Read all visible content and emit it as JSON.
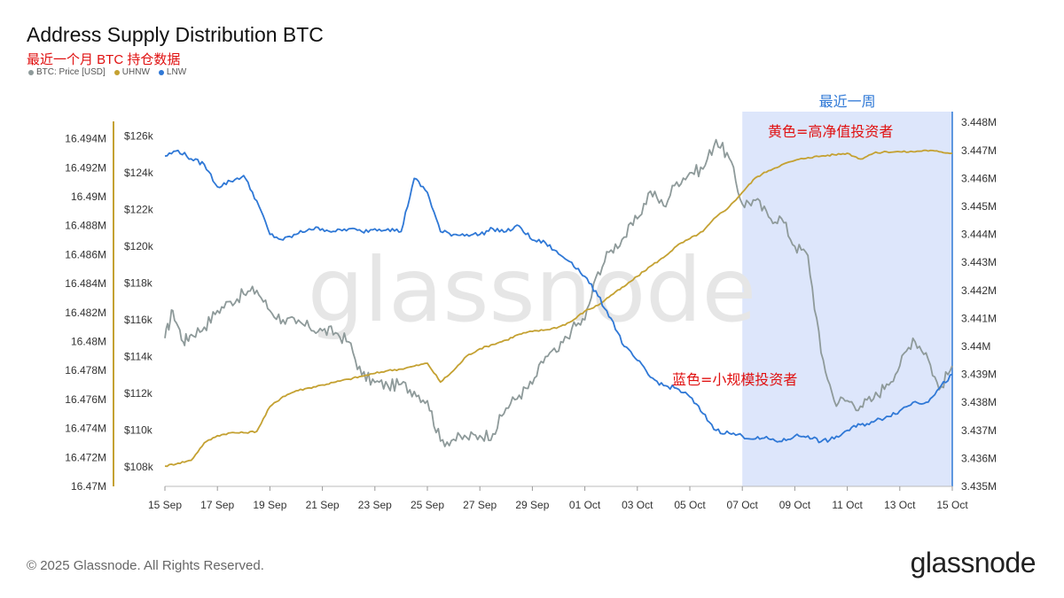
{
  "header": {
    "title": "Address Supply Distribution BTC",
    "subtitle": "最近一个月 BTC 持仓数据"
  },
  "footer": {
    "copyright": "© 2025 Glassnode. All Rights Reserved.",
    "logo": "glassnode",
    "watermark": "glassnode"
  },
  "colors": {
    "price": "#8e9a9a",
    "uhnw": "#c4a132",
    "lnw": "#2f78d6",
    "highlight": "#dde6fb",
    "annotation": "#e01010"
  },
  "annotations": {
    "highlight_label": "最近一周",
    "uhnw_label": "黄色=高净值投资者",
    "lnw_label": "蓝色=小规模投资者"
  },
  "chart_data": {
    "type": "line",
    "title": "Address Supply Distribution BTC",
    "x_range": [
      "2025-09-15",
      "2025-10-15"
    ],
    "x_ticks": [
      "15 Sep",
      "17 Sep",
      "19 Sep",
      "21 Sep",
      "23 Sep",
      "25 Sep",
      "27 Sep",
      "29 Sep",
      "01 Oct",
      "03 Oct",
      "05 Oct",
      "07 Oct",
      "09 Oct",
      "11 Oct",
      "13 Oct",
      "15 Oct"
    ],
    "highlight_range": [
      "2025-10-07",
      "2025-10-15"
    ],
    "axes": {
      "uhnw": {
        "ticks": [
          "16.47M",
          "16.472M",
          "16.474M",
          "16.476M",
          "16.478M",
          "16.48M",
          "16.482M",
          "16.484M",
          "16.486M",
          "16.488M",
          "16.49M",
          "16.492M",
          "16.494M"
        ],
        "range": [
          16.47,
          16.4955
        ]
      },
      "price": {
        "ticks": [
          "$108k",
          "$110k",
          "$112k",
          "$114k",
          "$116k",
          "$118k",
          "$120k",
          "$122k",
          "$124k",
          "$126k"
        ],
        "range": [
          107.2,
          127.5
        ]
      },
      "lnw": {
        "ticks": [
          "3.435M",
          "3.436M",
          "3.437M",
          "3.438M",
          "3.439M",
          "3.44M",
          "3.441M",
          "3.442M",
          "3.443M",
          "3.444M",
          "3.445M",
          "3.446M",
          "3.447M",
          "3.448M"
        ],
        "range": [
          3.435,
          3.4485
        ]
      }
    },
    "series": [
      {
        "name": "BTC: Price [USD]",
        "axis": "price",
        "x": [
          0,
          0.3,
          0.7,
          1,
          1.5,
          2,
          2.5,
          3,
          3.5,
          4,
          4.5,
          5,
          5.5,
          6,
          6.5,
          7,
          7.5,
          8,
          8.5,
          9,
          9.5,
          10,
          10.5,
          11,
          11.5,
          12,
          12.5,
          13,
          13.5,
          14,
          14.5,
          15,
          15.5,
          16,
          16.5,
          17,
          17.5,
          18,
          18.5,
          19,
          19.5,
          20,
          20.5,
          21,
          21.5,
          22,
          22.5,
          23,
          23.5,
          24,
          24.5,
          25,
          25.5,
          26,
          26.5,
          27,
          27.5,
          28,
          28.5,
          29,
          29.5,
          30
        ],
        "values": [
          115.0,
          116.5,
          114.8,
          115.2,
          115.6,
          116.5,
          117.0,
          117.4,
          117.6,
          116.5,
          116.0,
          115.8,
          115.6,
          115.4,
          115.3,
          114.8,
          113.0,
          112.6,
          112.4,
          112.5,
          112.1,
          111.6,
          109.4,
          109.5,
          109.6,
          109.7,
          109.8,
          111.2,
          111.9,
          112.5,
          114.0,
          114.3,
          115.5,
          116.0,
          118.6,
          119.8,
          120.5,
          121.5,
          123.0,
          122.2,
          123.5,
          124.0,
          124.2,
          125.8,
          124.8,
          122.3,
          122.5,
          121.6,
          121.5,
          120.0,
          119.5,
          114.2,
          111.6,
          111.6,
          111.3,
          111.7,
          112.5,
          113.5,
          115.0,
          114.2,
          112.2,
          113.5
        ]
      },
      {
        "name": "UHNW",
        "axis": "uhnw",
        "x": [
          0,
          0.5,
          1,
          1.5,
          2,
          2.5,
          3,
          3.5,
          4,
          4.5,
          5,
          5.5,
          6,
          6.5,
          7,
          7.5,
          8,
          8.5,
          9,
          9.5,
          10,
          10.5,
          11,
          11.5,
          12,
          12.5,
          13,
          13.5,
          14,
          14.5,
          15,
          15.5,
          16,
          16.5,
          17,
          17.5,
          18,
          18.5,
          19,
          19.5,
          20,
          20.5,
          21,
          21.5,
          22,
          22.5,
          23,
          23.5,
          24,
          24.5,
          25,
          25.5,
          26,
          26.5,
          27,
          27.5,
          28,
          28.5,
          29,
          29.5,
          30
        ],
        "values": [
          16.4714,
          16.4716,
          16.4718,
          16.473,
          16.4735,
          16.4737,
          16.4737,
          16.4738,
          16.4755,
          16.4762,
          16.4766,
          16.4768,
          16.477,
          16.4772,
          16.4774,
          16.4776,
          16.4778,
          16.478,
          16.4781,
          16.4783,
          16.4785,
          16.4772,
          16.478,
          16.479,
          16.4795,
          16.4798,
          16.4801,
          16.4805,
          16.4807,
          16.4808,
          16.481,
          16.4814,
          16.4821,
          16.4825,
          16.4832,
          16.4838,
          16.4845,
          16.4852,
          16.4858,
          16.4866,
          16.4871,
          16.4876,
          16.4886,
          16.4893,
          16.4903,
          16.4913,
          16.4918,
          16.4922,
          16.4925,
          16.4927,
          16.4928,
          16.4929,
          16.493,
          16.4926,
          16.493,
          16.4931,
          16.4931,
          16.4931,
          16.4932,
          16.4931,
          16.493
        ]
      },
      {
        "name": "LNW",
        "axis": "lnw",
        "x": [
          0,
          0.5,
          1,
          1.5,
          2,
          2.5,
          3,
          3.5,
          4,
          4.5,
          5,
          5.5,
          6,
          6.5,
          7,
          7.5,
          8,
          8.5,
          9,
          9.5,
          10,
          10.5,
          11,
          11.5,
          12,
          12.5,
          13,
          13.5,
          14,
          14.5,
          15,
          15.5,
          16,
          16.5,
          17,
          17.5,
          18,
          18.5,
          19,
          19.5,
          20,
          20.5,
          21,
          21.5,
          22,
          22.5,
          23,
          23.5,
          24,
          24.5,
          25,
          25.5,
          26,
          26.5,
          27,
          27.5,
          28,
          28.5,
          29,
          29.5,
          30
        ],
        "values": [
          3.4468,
          3.447,
          3.4467,
          3.4465,
          3.4457,
          3.4459,
          3.4461,
          3.4452,
          3.444,
          3.4438,
          3.444,
          3.4442,
          3.4442,
          3.4441,
          3.4442,
          3.4441,
          3.4442,
          3.4442,
          3.4441,
          3.446,
          3.4455,
          3.4441,
          3.444,
          3.444,
          3.444,
          3.4442,
          3.4441,
          3.4443,
          3.4438,
          3.4437,
          3.4433,
          3.443,
          3.4425,
          3.4418,
          3.441,
          3.44,
          3.4395,
          3.4389,
          3.4386,
          3.4385,
          3.4382,
          3.4376,
          3.437,
          3.4369,
          3.4368,
          3.4367,
          3.4367,
          3.4366,
          3.4368,
          3.4368,
          3.4366,
          3.4367,
          3.437,
          3.4372,
          3.4373,
          3.4375,
          3.4377,
          3.438,
          3.438,
          3.4385,
          3.439
        ]
      }
    ],
    "legend": {
      "entries": [
        "BTC: Price [USD]",
        "UHNW",
        "LNW"
      ],
      "placement": "top-left"
    }
  }
}
